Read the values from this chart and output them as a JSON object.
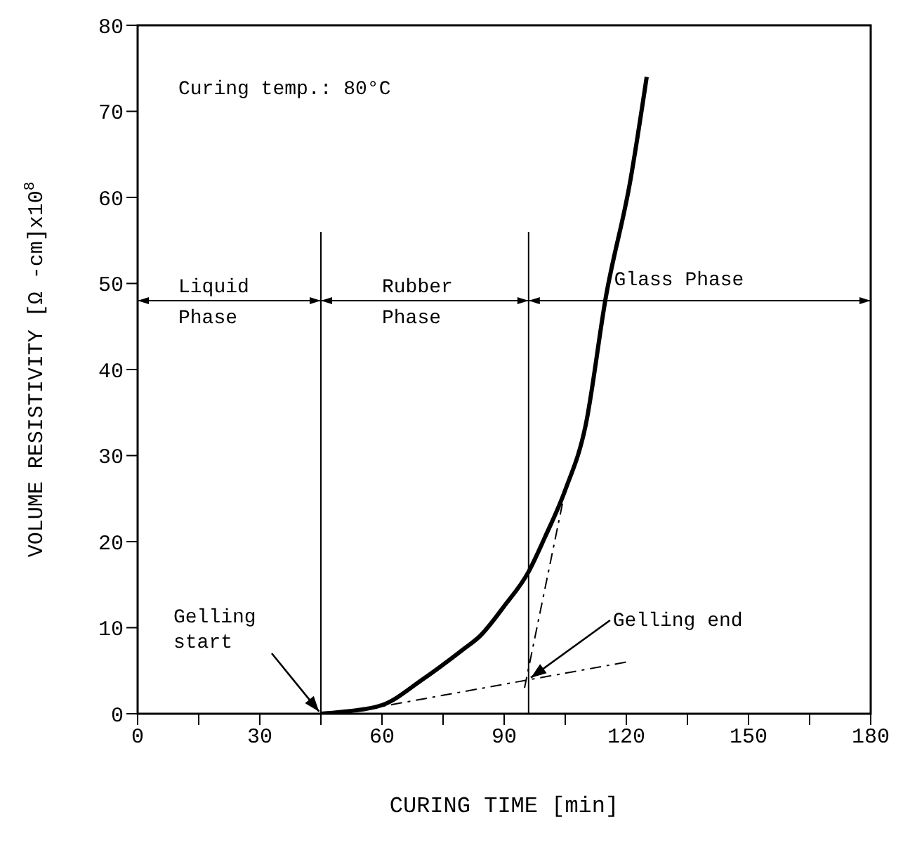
{
  "chart_data": {
    "type": "line",
    "xlabel": "CURING TIME [min]",
    "ylabel": "VOLUME RESISTIVITY [Ω -cm]x10$^{8}$",
    "xlim": [
      0,
      180
    ],
    "ylim": [
      0,
      80
    ],
    "xticks": [
      0,
      {
        "value": 15,
        "label": null
      },
      30,
      {
        "value": 45,
        "label": null
      },
      60,
      {
        "value": 75,
        "label": null
      },
      90,
      {
        "value": 105,
        "label": null
      },
      120,
      {
        "value": 135,
        "label": null
      },
      150,
      {
        "value": 165,
        "label": null
      },
      180
    ],
    "yticks": [
      0,
      10,
      20,
      30,
      40,
      50,
      60,
      70,
      80
    ],
    "grid": false,
    "marker": "none",
    "series": [
      {
        "color": "#000000",
        "x": [
          45,
          50,
          60,
          70,
          80,
          84,
          90,
          96,
          100,
          105,
          110,
          115,
          121,
          125
        ],
        "values": [
          0,
          0.2,
          1,
          4,
          7.5,
          9,
          12.5,
          16.5,
          20.5,
          26,
          33.5,
          48.5,
          62,
          74
        ]
      },
      {
        "color": "#000000",
        "line_style": "dashed",
        "x": [
          50,
          120
        ],
        "values": [
          0,
          6
        ]
      },
      {
        "color": "#000000",
        "line_style": "dashed",
        "x": [
          95,
          105
        ],
        "values": [
          3,
          26
        ]
      }
    ],
    "ref_lines": [
      {
        "axis": "x",
        "value": 45,
        "color": "#000000"
      },
      {
        "axis": "x",
        "value": 96,
        "color": "#000000"
      }
    ],
    "annotations": [
      "Curing temp.: 80°C",
      "Liquid Phase",
      "Rubber Phase",
      "Glass Phase",
      {
        "text": "Gelling start",
        "x": 45,
        "y": 0
      },
      {
        "text": "Gelling end",
        "x": 96,
        "y": 4
      }
    ]
  }
}
